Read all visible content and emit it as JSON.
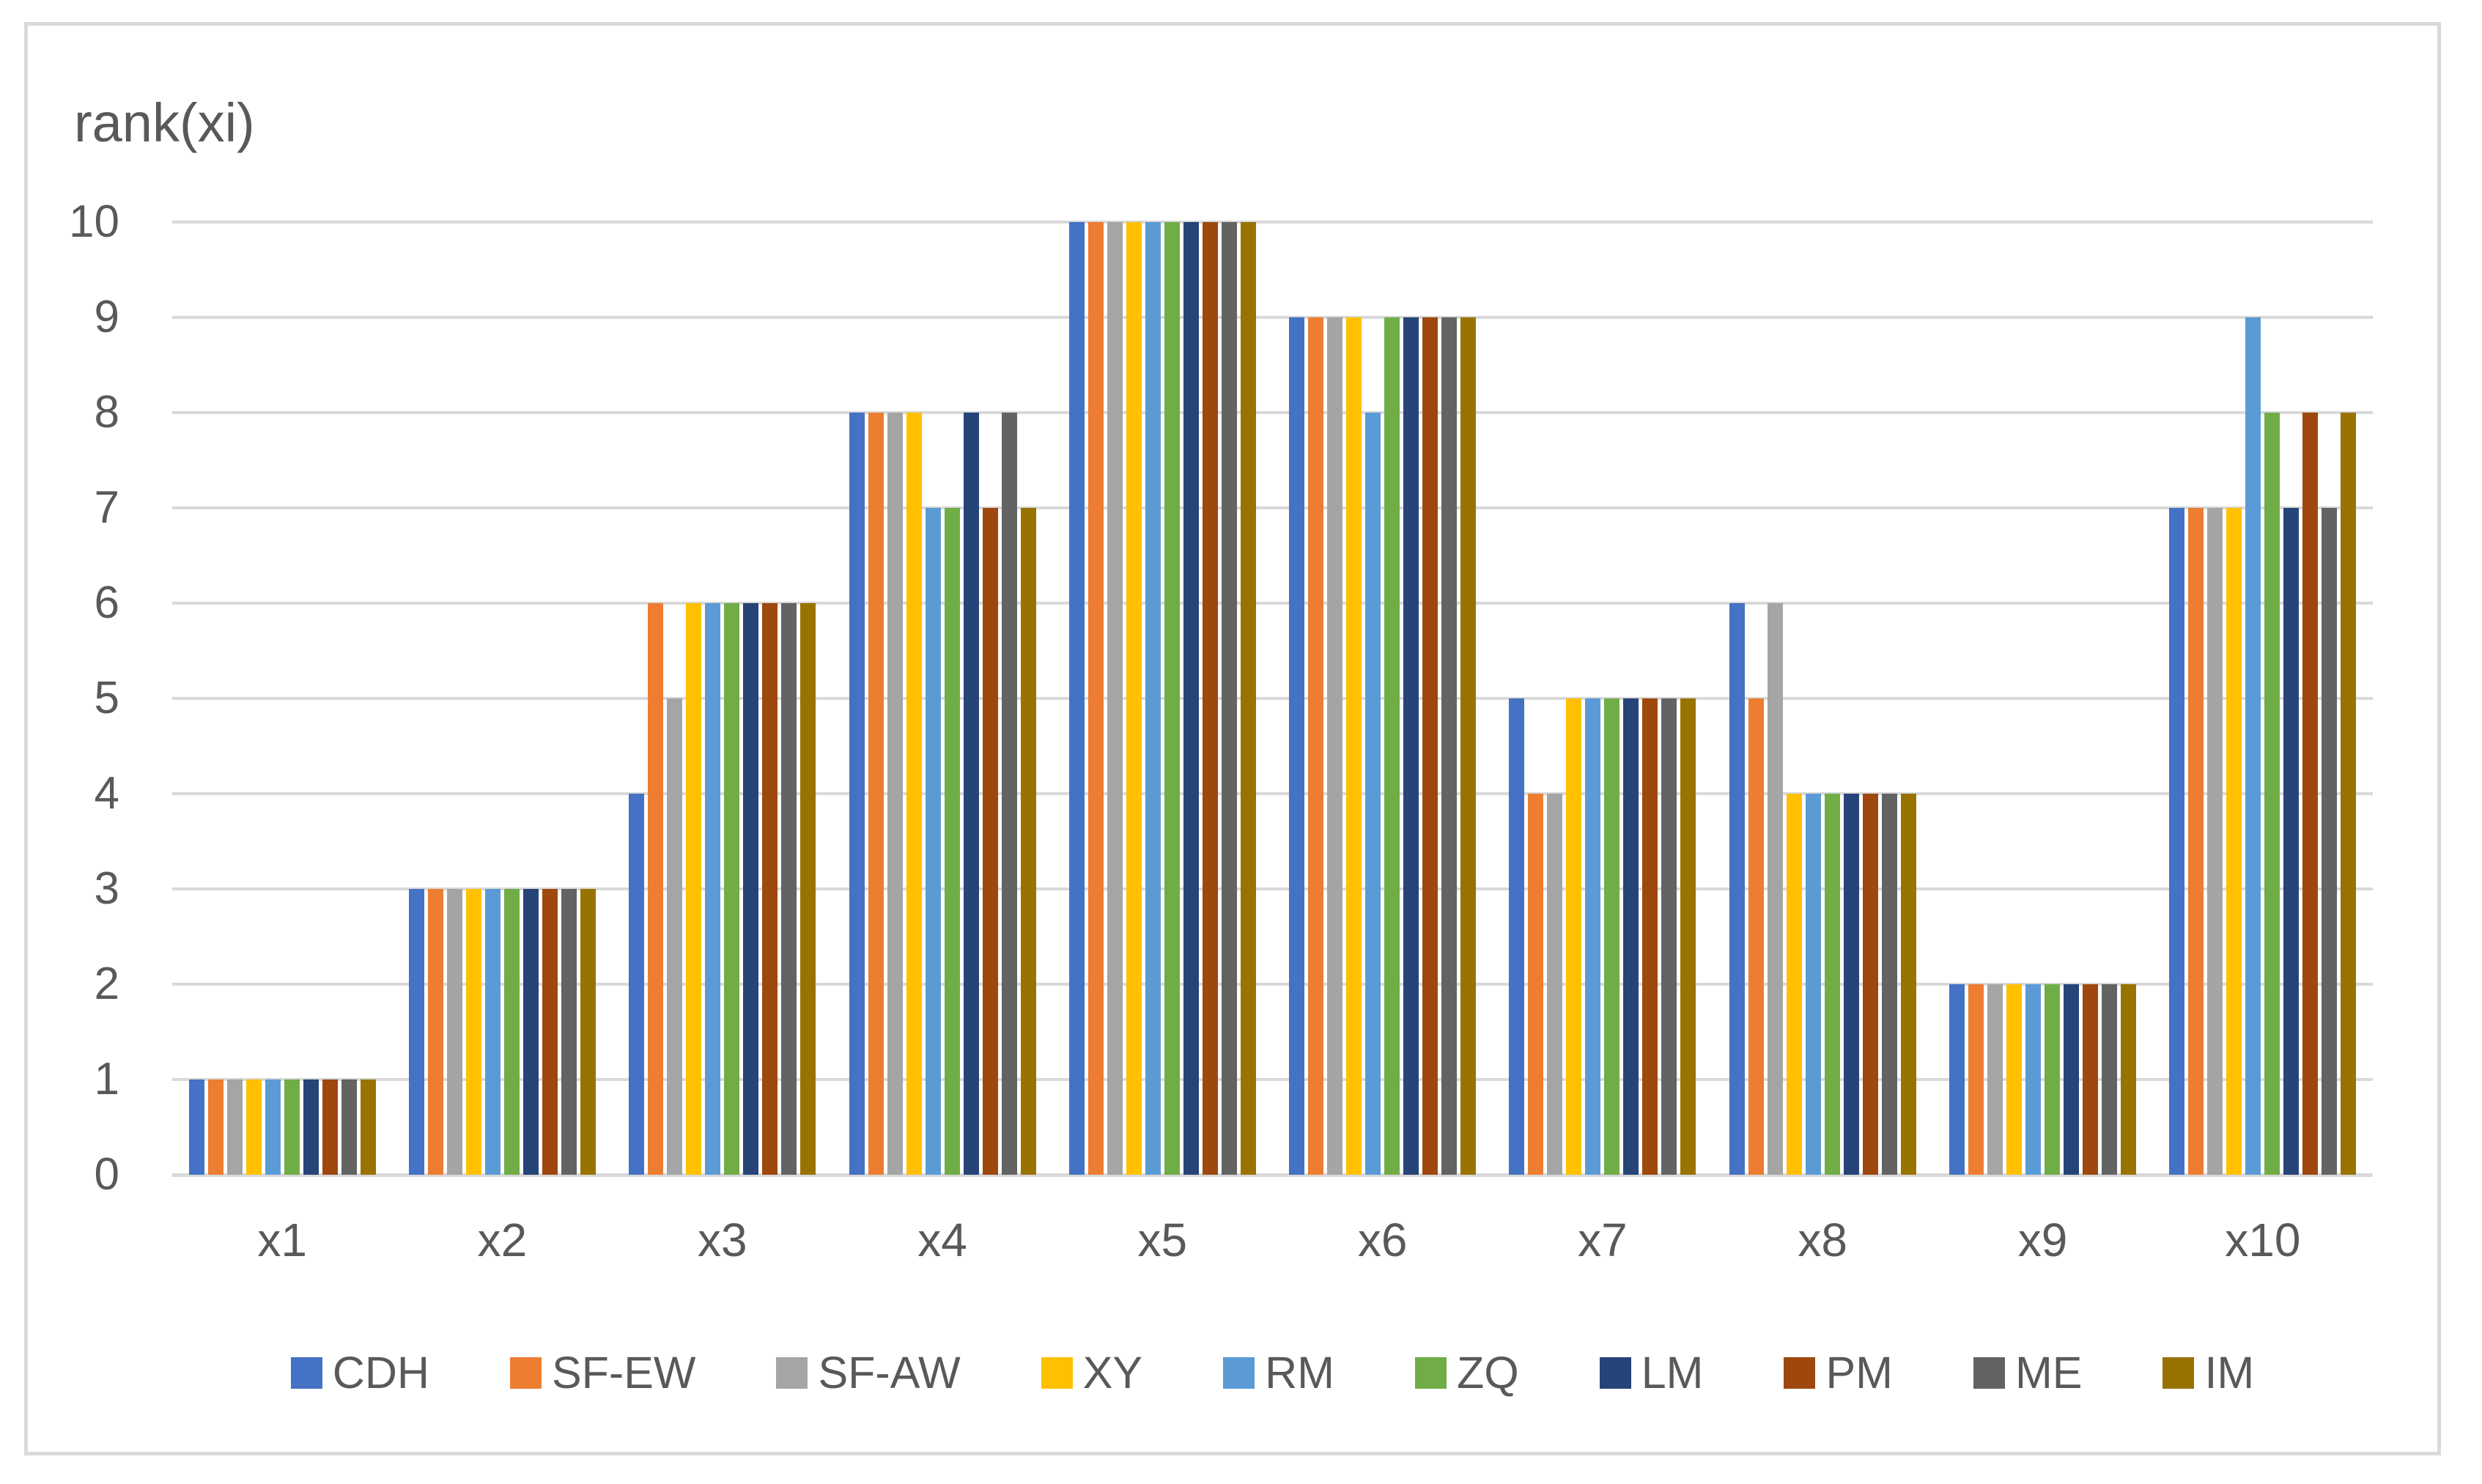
{
  "chart_data": {
    "type": "bar",
    "title": "rank(xi)",
    "categories": [
      "x1",
      "x2",
      "x3",
      "x4",
      "x5",
      "x6",
      "x7",
      "x8",
      "x9",
      "x10"
    ],
    "series": [
      {
        "name": "CDH",
        "color": "#4472C4",
        "values": [
          1,
          3,
          4,
          8,
          10,
          9,
          5,
          6,
          2,
          7
        ]
      },
      {
        "name": "SF-EW",
        "color": "#ED7D31",
        "values": [
          1,
          3,
          6,
          8,
          10,
          9,
          4,
          5,
          2,
          7
        ]
      },
      {
        "name": "SF-AW",
        "color": "#A5A5A5",
        "values": [
          1,
          3,
          5,
          8,
          10,
          9,
          4,
          6,
          2,
          7
        ]
      },
      {
        "name": "XY",
        "color": "#FFC000",
        "values": [
          1,
          3,
          6,
          8,
          10,
          9,
          5,
          4,
          2,
          7
        ]
      },
      {
        "name": "RM",
        "color": "#5B9BD5",
        "values": [
          1,
          3,
          6,
          7,
          10,
          8,
          5,
          4,
          2,
          9
        ]
      },
      {
        "name": "ZQ",
        "color": "#70AD47",
        "values": [
          1,
          3,
          6,
          7,
          10,
          9,
          5,
          4,
          2,
          8
        ]
      },
      {
        "name": "LM",
        "color": "#264478",
        "values": [
          1,
          3,
          6,
          8,
          10,
          9,
          5,
          4,
          2,
          7
        ]
      },
      {
        "name": "PM",
        "color": "#9E480E",
        "values": [
          1,
          3,
          6,
          7,
          10,
          9,
          5,
          4,
          2,
          8
        ]
      },
      {
        "name": "ME",
        "color": "#636363",
        "values": [
          1,
          3,
          6,
          8,
          10,
          9,
          5,
          4,
          2,
          7
        ]
      },
      {
        "name": "IM",
        "color": "#997300",
        "values": [
          1,
          3,
          6,
          7,
          10,
          9,
          5,
          4,
          2,
          8
        ]
      }
    ],
    "ylim": [
      0,
      10
    ],
    "yticks": [
      0,
      1,
      2,
      3,
      4,
      5,
      6,
      7,
      8,
      9,
      10
    ],
    "xlabel": "",
    "ylabel": "rank(xi)",
    "grid": "horizontal",
    "legend_position": "bottom",
    "colors": {
      "text": "#595959",
      "gridline": "#D9D9D9",
      "frame_border": "#D9D9D9",
      "background": "#FFFFFF"
    }
  }
}
